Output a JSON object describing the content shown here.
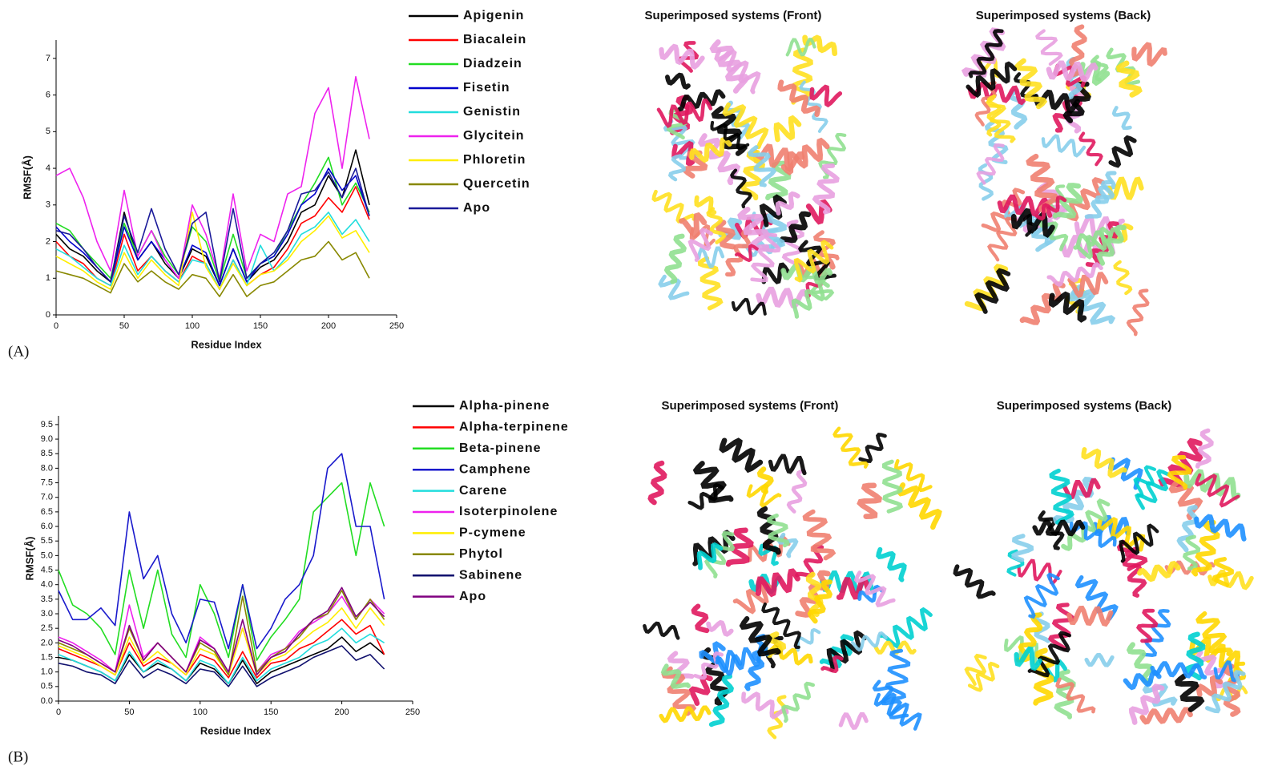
{
  "panel_labels": [
    "(A)",
    "(B)"
  ],
  "image_titles": [
    [
      "Superimposed systems (Front)",
      "Superimposed systems (Back)"
    ],
    [
      "Superimposed systems (Front)",
      "Superimposed systems (Back)"
    ]
  ],
  "chart_data": [
    {
      "type": "line",
      "x_label": "Residue Index",
      "y_label": "RMSF(Å)",
      "x": [
        0,
        10,
        20,
        30,
        40,
        50,
        60,
        70,
        80,
        90,
        100,
        110,
        120,
        130,
        140,
        150,
        160,
        170,
        180,
        190,
        200,
        210,
        220,
        230
      ],
      "xlim": [
        0,
        250
      ],
      "xticks": [
        0,
        50,
        100,
        150,
        200,
        250
      ],
      "ylim": [
        0,
        7.5
      ],
      "yticks": [
        0,
        1,
        2,
        3,
        4,
        5,
        6,
        7
      ],
      "series": [
        {
          "name": "Apigenin",
          "color": "#000000",
          "values": [
            2.2,
            1.8,
            1.6,
            1.2,
            0.9,
            2.8,
            1.5,
            2.0,
            1.4,
            1.0,
            1.8,
            1.6,
            0.8,
            1.8,
            0.9,
            1.3,
            1.5,
            2.0,
            2.8,
            3.0,
            3.8,
            3.2,
            4.5,
            3.0
          ]
        },
        {
          "name": "Biacalein",
          "color": "#ff0000",
          "values": [
            2.0,
            1.6,
            1.4,
            1.0,
            0.8,
            2.2,
            1.2,
            1.6,
            1.2,
            0.9,
            1.6,
            1.4,
            0.7,
            1.5,
            0.8,
            1.1,
            1.3,
            1.8,
            2.5,
            2.7,
            3.2,
            2.8,
            3.5,
            2.6
          ]
        },
        {
          "name": "Diadzein",
          "color": "#22dd22",
          "values": [
            2.5,
            2.3,
            1.8,
            1.4,
            1.0,
            2.5,
            1.6,
            2.3,
            1.6,
            1.1,
            2.4,
            2.0,
            0.9,
            2.2,
            1.0,
            1.4,
            1.6,
            2.3,
            3.0,
            3.6,
            4.3,
            3.0,
            3.6,
            2.8
          ]
        },
        {
          "name": "Fisetin",
          "color": "#0000cc",
          "values": [
            2.4,
            2.0,
            1.7,
            1.3,
            0.9,
            2.4,
            1.5,
            2.0,
            1.5,
            1.0,
            1.9,
            1.7,
            0.8,
            1.8,
            0.9,
            1.4,
            1.6,
            2.2,
            3.0,
            3.3,
            4.0,
            3.4,
            3.8,
            2.7
          ]
        },
        {
          "name": "Genistin",
          "color": "#22dddd",
          "values": [
            1.8,
            1.6,
            1.3,
            1.0,
            0.8,
            1.9,
            1.1,
            1.6,
            1.2,
            0.9,
            1.5,
            1.4,
            0.7,
            1.5,
            0.8,
            1.9,
            1.2,
            1.6,
            2.2,
            2.4,
            2.8,
            2.2,
            2.6,
            2.0
          ]
        },
        {
          "name": "Glycitein",
          "color": "#ee22ee",
          "values": [
            3.8,
            4.0,
            3.2,
            2.0,
            1.2,
            3.4,
            1.6,
            2.3,
            1.5,
            1.0,
            3.0,
            2.2,
            1.0,
            3.3,
            1.2,
            2.2,
            2.0,
            3.3,
            3.5,
            5.5,
            6.2,
            4.0,
            6.5,
            4.8
          ]
        },
        {
          "name": "Phloretin",
          "color": "#ffee00",
          "values": [
            1.6,
            1.4,
            1.2,
            0.9,
            0.7,
            1.7,
            1.0,
            1.5,
            1.1,
            0.8,
            2.8,
            1.3,
            0.7,
            1.4,
            0.8,
            1.1,
            1.2,
            1.5,
            2.0,
            2.3,
            2.7,
            2.1,
            2.3,
            1.7
          ]
        },
        {
          "name": "Quercetin",
          "color": "#888800",
          "values": [
            1.2,
            1.1,
            1.0,
            0.8,
            0.6,
            1.4,
            0.9,
            1.2,
            0.9,
            0.7,
            1.1,
            1.0,
            0.5,
            1.1,
            0.5,
            0.8,
            0.9,
            1.2,
            1.5,
            1.6,
            2.0,
            1.5,
            1.7,
            1.0
          ]
        },
        {
          "name": "Apo",
          "color": "#1a1a99",
          "values": [
            2.3,
            2.2,
            1.8,
            1.3,
            0.9,
            2.7,
            1.7,
            2.9,
            1.8,
            1.1,
            2.5,
            2.8,
            0.9,
            2.9,
            1.0,
            1.4,
            1.7,
            2.3,
            3.3,
            3.4,
            3.9,
            3.2,
            4.0,
            2.7
          ]
        }
      ]
    },
    {
      "type": "line",
      "x_label": "Residue Index",
      "y_label": "RMSF(Å)",
      "x": [
        0,
        10,
        20,
        30,
        40,
        50,
        60,
        70,
        80,
        90,
        100,
        110,
        120,
        130,
        140,
        150,
        160,
        170,
        180,
        190,
        200,
        210,
        220,
        230
      ],
      "xlim": [
        0,
        250
      ],
      "xticks": [
        0,
        50,
        100,
        150,
        200,
        250
      ],
      "ylim": [
        0,
        9.8
      ],
      "yticks": [
        {
          "value": 0,
          "label": "0.0"
        },
        0.5,
        {
          "value": 1,
          "label": "1.0"
        },
        1.5,
        {
          "value": 2,
          "label": "2.0"
        },
        2.5,
        {
          "value": 3,
          "label": "3.0"
        },
        3.5,
        {
          "value": 4,
          "label": "4.0"
        },
        4.5,
        {
          "value": 5,
          "label": "5.0"
        },
        5.5,
        {
          "value": 6,
          "label": "6.0"
        },
        6.5,
        {
          "value": 7,
          "label": "7.0"
        },
        7.5,
        {
          "value": 8,
          "label": "8.0"
        },
        8.5,
        {
          "value": 9,
          "label": "9.0"
        },
        9.5
      ],
      "series": [
        {
          "name": "Alpha-pinene",
          "color": "#000000",
          "values": [
            1.5,
            1.4,
            1.2,
            1.0,
            0.7,
            1.6,
            1.0,
            1.3,
            1.1,
            0.7,
            1.3,
            1.1,
            0.6,
            1.4,
            0.6,
            1.0,
            1.2,
            1.4,
            1.6,
            1.8,
            2.2,
            1.7,
            2.0,
            1.6
          ]
        },
        {
          "name": "Alpha-terpinene",
          "color": "#ff0000",
          "values": [
            1.8,
            1.6,
            1.4,
            1.2,
            0.9,
            2.0,
            1.2,
            1.5,
            1.3,
            0.9,
            1.6,
            1.4,
            0.8,
            1.7,
            0.8,
            1.3,
            1.4,
            1.8,
            2.0,
            2.4,
            2.8,
            2.3,
            2.6,
            1.6
          ]
        },
        {
          "name": "Beta-pinene",
          "color": "#22dd22",
          "values": [
            4.5,
            3.3,
            3.0,
            2.5,
            1.6,
            4.5,
            2.5,
            4.5,
            2.3,
            1.5,
            4.0,
            3.0,
            1.5,
            4.0,
            1.4,
            2.2,
            2.8,
            3.5,
            6.5,
            7.0,
            7.5,
            5.0,
            7.5,
            6.0
          ]
        },
        {
          "name": "Camphene",
          "color": "#1a1acc",
          "values": [
            3.8,
            2.8,
            2.8,
            3.2,
            2.6,
            6.5,
            4.2,
            5.0,
            3.0,
            2.0,
            3.5,
            3.4,
            1.8,
            4.0,
            1.8,
            2.5,
            3.5,
            4.0,
            5.0,
            8.0,
            8.5,
            6.0,
            6.0,
            3.5
          ]
        },
        {
          "name": "Carene",
          "color": "#22dddd",
          "values": [
            1.6,
            1.4,
            1.2,
            1.0,
            0.7,
            1.7,
            1.0,
            1.4,
            1.1,
            0.7,
            1.4,
            1.2,
            0.6,
            1.5,
            0.7,
            1.1,
            1.3,
            1.5,
            1.9,
            2.1,
            2.5,
            2.0,
            2.3,
            2.0
          ]
        },
        {
          "name": "Isoterpinolene",
          "color": "#ee22ee",
          "values": [
            2.2,
            2.0,
            1.7,
            1.4,
            1.0,
            3.3,
            1.5,
            2.0,
            1.5,
            1.0,
            2.2,
            1.8,
            1.0,
            2.5,
            1.0,
            1.6,
            1.8,
            2.4,
            2.7,
            3.0,
            3.6,
            2.8,
            3.5,
            3.0
          ]
        },
        {
          "name": "P-cymene",
          "color": "#ffee00",
          "values": [
            1.9,
            1.7,
            1.5,
            1.2,
            0.9,
            2.2,
            1.3,
            1.7,
            1.3,
            0.9,
            1.8,
            1.6,
            0.9,
            2.5,
            0.9,
            1.4,
            1.6,
            2.0,
            2.4,
            2.7,
            3.2,
            2.5,
            3.2,
            2.6
          ]
        },
        {
          "name": "Phytol",
          "color": "#888800",
          "values": [
            2.0,
            1.8,
            1.6,
            1.3,
            1.0,
            2.5,
            1.4,
            2.0,
            1.5,
            1.0,
            2.0,
            1.7,
            0.9,
            3.6,
            1.0,
            1.5,
            1.8,
            2.2,
            2.8,
            3.0,
            3.8,
            2.8,
            3.5,
            2.8
          ]
        },
        {
          "name": "Sabinene",
          "color": "#10106e",
          "values": [
            1.3,
            1.2,
            1.0,
            0.9,
            0.6,
            1.4,
            0.8,
            1.1,
            0.9,
            0.6,
            1.1,
            1.0,
            0.5,
            1.2,
            0.5,
            0.8,
            1.0,
            1.2,
            1.5,
            1.7,
            1.9,
            1.4,
            1.6,
            1.1
          ]
        },
        {
          "name": "Apo",
          "color": "#800080",
          "values": [
            2.1,
            1.9,
            1.6,
            1.3,
            1.0,
            2.6,
            1.4,
            2.0,
            1.5,
            1.0,
            2.1,
            1.8,
            1.0,
            2.8,
            0.9,
            1.5,
            1.7,
            2.3,
            2.8,
            3.1,
            3.9,
            2.9,
            3.4,
            2.9
          ]
        }
      ]
    }
  ]
}
